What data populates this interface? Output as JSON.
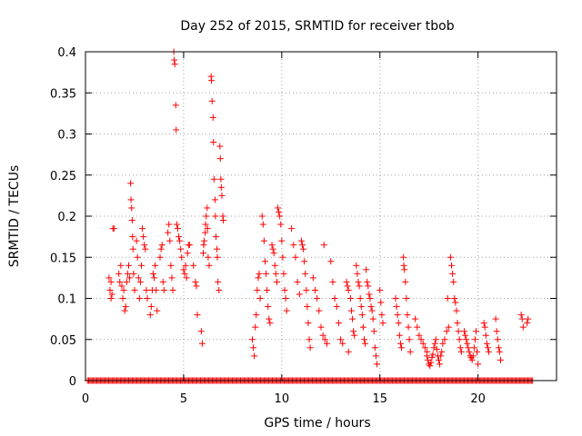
{
  "chart_data": {
    "type": "scatter",
    "title": "Day 252 of 2015, SRMTID for receiver tbob",
    "xlabel": "GPS time / hours",
    "ylabel": "SRMTID / TECUs",
    "xlim": [
      0,
      24
    ],
    "ylim": [
      0,
      0.4
    ],
    "x_ticks": [
      0,
      5,
      10,
      15,
      20
    ],
    "x_tick_labels": [
      "0",
      "5",
      "10",
      "15",
      "20"
    ],
    "y_ticks": [
      0,
      0.05,
      0.1,
      0.15,
      0.2,
      0.25,
      0.3,
      0.35,
      0.4
    ],
    "y_tick_labels": [
      "0",
      "0.05",
      "0.1",
      "0.15",
      "0.2",
      "0.25",
      "0.3",
      "0.35",
      "0.4"
    ],
    "grid": true,
    "marker": "+",
    "color": "#ff0000",
    "series": [
      {
        "name": "SRMTID",
        "points": [
          [
            1.2,
            0.125
          ],
          [
            1.25,
            0.11
          ],
          [
            1.3,
            0.1
          ],
          [
            1.35,
            0.105
          ],
          [
            1.4,
            0.185
          ],
          [
            1.45,
            0.185
          ],
          [
            1.3,
            0.12
          ],
          [
            1.7,
            0.13
          ],
          [
            1.75,
            0.12
          ],
          [
            1.8,
            0.14
          ],
          [
            1.85,
            0.115
          ],
          [
            1.9,
            0.1
          ],
          [
            1.95,
            0.11
          ],
          [
            2.0,
            0.085
          ],
          [
            2.05,
            0.09
          ],
          [
            2.1,
            0.12
          ],
          [
            2.15,
            0.13
          ],
          [
            2.2,
            0.14
          ],
          [
            2.25,
            0.125
          ],
          [
            2.3,
            0.24
          ],
          [
            2.32,
            0.22
          ],
          [
            2.35,
            0.21
          ],
          [
            2.38,
            0.195
          ],
          [
            2.4,
            0.175
          ],
          [
            2.42,
            0.16
          ],
          [
            2.45,
            0.13
          ],
          [
            2.5,
            0.11
          ],
          [
            2.6,
            0.17
          ],
          [
            2.65,
            0.15
          ],
          [
            2.7,
            0.125
          ],
          [
            2.75,
            0.1
          ],
          [
            2.8,
            0.12
          ],
          [
            2.85,
            0.14
          ],
          [
            2.9,
            0.185
          ],
          [
            2.95,
            0.175
          ],
          [
            3.0,
            0.165
          ],
          [
            3.05,
            0.16
          ],
          [
            3.1,
            0.11
          ],
          [
            3.15,
            0.1
          ],
          [
            3.3,
            0.08
          ],
          [
            3.35,
            0.09
          ],
          [
            3.4,
            0.11
          ],
          [
            3.45,
            0.13
          ],
          [
            3.5,
            0.125
          ],
          [
            3.55,
            0.14
          ],
          [
            3.6,
            0.11
          ],
          [
            3.65,
            0.085
          ],
          [
            3.8,
            0.15
          ],
          [
            3.85,
            0.16
          ],
          [
            3.9,
            0.165
          ],
          [
            3.95,
            0.12
          ],
          [
            4.0,
            0.11
          ],
          [
            4.2,
            0.18
          ],
          [
            4.25,
            0.19
          ],
          [
            4.3,
            0.17
          ],
          [
            4.35,
            0.14
          ],
          [
            4.4,
            0.125
          ],
          [
            4.45,
            0.11
          ],
          [
            4.5,
            0.4
          ],
          [
            4.52,
            0.39
          ],
          [
            4.55,
            0.385
          ],
          [
            4.6,
            0.335
          ],
          [
            4.62,
            0.305
          ],
          [
            4.65,
            0.19
          ],
          [
            4.7,
            0.185
          ],
          [
            4.75,
            0.175
          ],
          [
            4.8,
            0.17
          ],
          [
            4.85,
            0.16
          ],
          [
            4.9,
            0.15
          ],
          [
            5.0,
            0.135
          ],
          [
            5.05,
            0.13
          ],
          [
            5.1,
            0.14
          ],
          [
            5.15,
            0.125
          ],
          [
            5.2,
            0.155
          ],
          [
            5.25,
            0.165
          ],
          [
            5.3,
            0.165
          ],
          [
            5.5,
            0.14
          ],
          [
            5.6,
            0.12
          ],
          [
            5.65,
            0.115
          ],
          [
            5.7,
            0.08
          ],
          [
            5.9,
            0.06
          ],
          [
            5.95,
            0.045
          ],
          [
            6.0,
            0.155
          ],
          [
            6.02,
            0.165
          ],
          [
            6.05,
            0.17
          ],
          [
            6.1,
            0.18
          ],
          [
            6.12,
            0.19
          ],
          [
            6.15,
            0.2
          ],
          [
            6.2,
            0.21
          ],
          [
            6.22,
            0.185
          ],
          [
            6.25,
            0.15
          ],
          [
            6.3,
            0.14
          ],
          [
            6.4,
            0.37
          ],
          [
            6.42,
            0.365
          ],
          [
            6.45,
            0.34
          ],
          [
            6.5,
            0.32
          ],
          [
            6.52,
            0.29
          ],
          [
            6.55,
            0.245
          ],
          [
            6.6,
            0.22
          ],
          [
            6.62,
            0.2
          ],
          [
            6.65,
            0.175
          ],
          [
            6.7,
            0.16
          ],
          [
            6.72,
            0.15
          ],
          [
            6.75,
            0.12
          ],
          [
            6.8,
            0.11
          ],
          [
            6.85,
            0.285
          ],
          [
            6.87,
            0.27
          ],
          [
            6.9,
            0.245
          ],
          [
            6.92,
            0.235
          ],
          [
            6.95,
            0.225
          ],
          [
            7.0,
            0.2
          ],
          [
            7.02,
            0.195
          ],
          [
            8.5,
            0.05
          ],
          [
            8.55,
            0.04
          ],
          [
            8.6,
            0.03
          ],
          [
            8.65,
            0.065
          ],
          [
            8.7,
            0.08
          ],
          [
            8.75,
            0.11
          ],
          [
            8.8,
            0.125
          ],
          [
            8.85,
            0.13
          ],
          [
            8.9,
            0.1
          ],
          [
            9.0,
            0.2
          ],
          [
            9.05,
            0.19
          ],
          [
            9.1,
            0.17
          ],
          [
            9.15,
            0.145
          ],
          [
            9.2,
            0.13
          ],
          [
            9.25,
            0.11
          ],
          [
            9.3,
            0.09
          ],
          [
            9.35,
            0.075
          ],
          [
            9.4,
            0.07
          ],
          [
            9.5,
            0.165
          ],
          [
            9.55,
            0.16
          ],
          [
            9.6,
            0.155
          ],
          [
            9.65,
            0.14
          ],
          [
            9.7,
            0.13
          ],
          [
            9.75,
            0.12
          ],
          [
            9.8,
            0.21
          ],
          [
            9.85,
            0.205
          ],
          [
            9.9,
            0.2
          ],
          [
            9.95,
            0.19
          ],
          [
            10.0,
            0.17
          ],
          [
            10.05,
            0.15
          ],
          [
            10.1,
            0.13
          ],
          [
            10.15,
            0.11
          ],
          [
            10.2,
            0.1
          ],
          [
            10.25,
            0.085
          ],
          [
            10.5,
            0.185
          ],
          [
            10.6,
            0.165
          ],
          [
            10.7,
            0.15
          ],
          [
            10.8,
            0.12
          ],
          [
            10.9,
            0.105
          ],
          [
            11.0,
            0.17
          ],
          [
            11.05,
            0.165
          ],
          [
            11.1,
            0.16
          ],
          [
            11.15,
            0.145
          ],
          [
            11.2,
            0.13
          ],
          [
            11.25,
            0.11
          ],
          [
            11.3,
            0.09
          ],
          [
            11.35,
            0.07
          ],
          [
            11.4,
            0.05
          ],
          [
            11.45,
            0.04
          ],
          [
            11.6,
            0.125
          ],
          [
            11.7,
            0.11
          ],
          [
            11.8,
            0.1
          ],
          [
            11.9,
            0.085
          ],
          [
            12.0,
            0.065
          ],
          [
            12.1,
            0.055
          ],
          [
            12.2,
            0.05
          ],
          [
            12.3,
            0.045
          ],
          [
            12.15,
            0.165
          ],
          [
            12.5,
            0.145
          ],
          [
            12.6,
            0.12
          ],
          [
            12.7,
            0.1
          ],
          [
            12.8,
            0.09
          ],
          [
            12.9,
            0.07
          ],
          [
            13.0,
            0.05
          ],
          [
            13.1,
            0.045
          ],
          [
            13.3,
            0.12
          ],
          [
            13.35,
            0.115
          ],
          [
            13.4,
            0.11
          ],
          [
            13.5,
            0.1
          ],
          [
            13.55,
            0.085
          ],
          [
            13.6,
            0.075
          ],
          [
            13.65,
            0.06
          ],
          [
            13.7,
            0.055
          ],
          [
            13.4,
            0.035
          ],
          [
            13.8,
            0.14
          ],
          [
            13.85,
            0.13
          ],
          [
            13.9,
            0.12
          ],
          [
            13.95,
            0.115
          ],
          [
            14.0,
            0.1
          ],
          [
            14.05,
            0.09
          ],
          [
            14.1,
            0.08
          ],
          [
            14.15,
            0.065
          ],
          [
            14.2,
            0.05
          ],
          [
            14.25,
            0.045
          ],
          [
            14.3,
            0.135
          ],
          [
            14.35,
            0.12
          ],
          [
            14.4,
            0.115
          ],
          [
            14.45,
            0.105
          ],
          [
            14.5,
            0.1
          ],
          [
            14.55,
            0.09
          ],
          [
            14.6,
            0.085
          ],
          [
            14.65,
            0.075
          ],
          [
            14.7,
            0.06
          ],
          [
            14.75,
            0.04
          ],
          [
            14.8,
            0.03
          ],
          [
            14.85,
            0.02
          ],
          [
            15.0,
            0.11
          ],
          [
            15.05,
            0.095
          ],
          [
            15.1,
            0.08
          ],
          [
            15.15,
            0.07
          ],
          [
            15.8,
            0.1
          ],
          [
            15.85,
            0.09
          ],
          [
            15.9,
            0.08
          ],
          [
            15.95,
            0.07
          ],
          [
            16.0,
            0.055
          ],
          [
            16.05,
            0.045
          ],
          [
            16.1,
            0.04
          ],
          [
            16.2,
            0.15
          ],
          [
            16.22,
            0.14
          ],
          [
            16.25,
            0.135
          ],
          [
            16.3,
            0.12
          ],
          [
            16.35,
            0.1
          ],
          [
            16.4,
            0.08
          ],
          [
            16.45,
            0.065
          ],
          [
            16.5,
            0.05
          ],
          [
            16.55,
            0.035
          ],
          [
            16.8,
            0.075
          ],
          [
            16.9,
            0.065
          ],
          [
            17.0,
            0.055
          ],
          [
            17.1,
            0.05
          ],
          [
            17.2,
            0.045
          ],
          [
            17.3,
            0.04
          ],
          [
            17.4,
            0.035
          ],
          [
            17.4,
            0.03
          ],
          [
            17.45,
            0.025
          ],
          [
            17.5,
            0.02
          ],
          [
            17.55,
            0.018
          ],
          [
            17.6,
            0.022
          ],
          [
            17.65,
            0.028
          ],
          [
            17.7,
            0.032
          ],
          [
            17.75,
            0.04
          ],
          [
            17.8,
            0.045
          ],
          [
            17.85,
            0.05
          ],
          [
            17.9,
            0.038
          ],
          [
            17.95,
            0.03
          ],
          [
            18.0,
            0.025
          ],
          [
            18.05,
            0.02
          ],
          [
            18.1,
            0.03
          ],
          [
            18.15,
            0.035
          ],
          [
            18.2,
            0.045
          ],
          [
            18.3,
            0.05
          ],
          [
            18.4,
            0.06
          ],
          [
            18.5,
            0.065
          ],
          [
            18.45,
            0.1
          ],
          [
            18.6,
            0.15
          ],
          [
            18.65,
            0.14
          ],
          [
            18.7,
            0.13
          ],
          [
            18.75,
            0.12
          ],
          [
            18.8,
            0.1
          ],
          [
            18.85,
            0.095
          ],
          [
            18.9,
            0.085
          ],
          [
            18.95,
            0.07
          ],
          [
            19.0,
            0.06
          ],
          [
            19.05,
            0.05
          ],
          [
            19.1,
            0.04
          ],
          [
            19.15,
            0.035
          ],
          [
            19.3,
            0.06
          ],
          [
            19.35,
            0.055
          ],
          [
            19.4,
            0.05
          ],
          [
            19.45,
            0.045
          ],
          [
            19.5,
            0.04
          ],
          [
            19.55,
            0.035
          ],
          [
            19.6,
            0.03
          ],
          [
            19.65,
            0.028
          ],
          [
            19.7,
            0.025
          ],
          [
            19.75,
            0.03
          ],
          [
            19.8,
            0.04
          ],
          [
            19.85,
            0.05
          ],
          [
            19.9,
            0.06
          ],
          [
            19.95,
            0.035
          ],
          [
            20.0,
            0.02
          ],
          [
            20.3,
            0.07
          ],
          [
            20.35,
            0.065
          ],
          [
            20.4,
            0.055
          ],
          [
            20.45,
            0.045
          ],
          [
            20.5,
            0.04
          ],
          [
            20.55,
            0.035
          ],
          [
            20.9,
            0.075
          ],
          [
            20.95,
            0.06
          ],
          [
            21.0,
            0.05
          ],
          [
            21.05,
            0.04
          ],
          [
            21.1,
            0.035
          ],
          [
            21.15,
            0.025
          ],
          [
            22.2,
            0.08
          ],
          [
            22.25,
            0.075
          ],
          [
            22.3,
            0.065
          ],
          [
            22.5,
            0.07
          ],
          [
            22.55,
            0.075
          ]
        ]
      },
      {
        "name": "zero baseline",
        "x_range": [
          0.1,
          22.8
        ],
        "y": 0
      }
    ]
  }
}
